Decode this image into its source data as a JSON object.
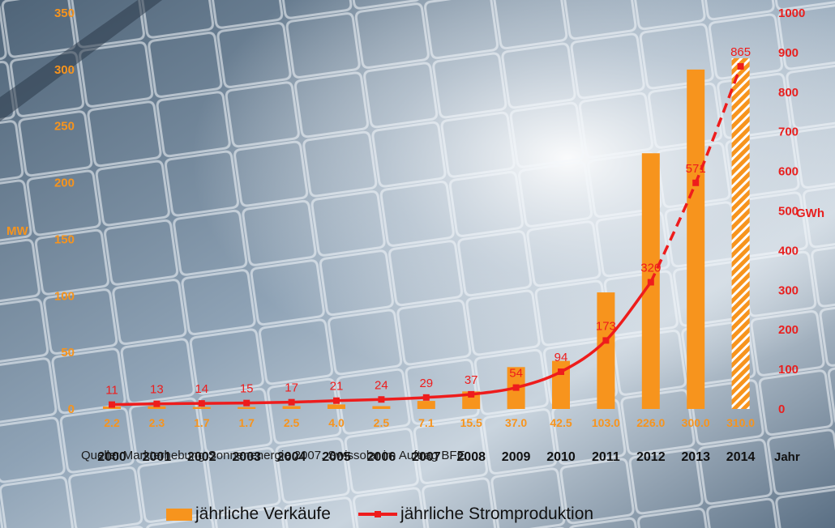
{
  "colors": {
    "bar": "#f7941d",
    "bar_estimate_stripe": "#ffffff",
    "line": "#ee1c1c",
    "axis_label": "#f7941d",
    "right_axis_label": "#e8201f",
    "value_label": "#f7941d",
    "line_label": "#ee1c1c",
    "year_label": "#111111"
  },
  "source_text": "Quelle: Markterhebung Sonnenenergie 2007, Swissolar im Auftrag BFE",
  "legend": {
    "bar_label": "jährliche Verkäufe",
    "line_label": "jährliche Stromproduktion"
  },
  "chart_data": {
    "type": "bar+line",
    "categories": [
      "2000",
      "2001",
      "2002",
      "2003",
      "2004",
      "2005",
      "2006",
      "2007",
      "2008",
      "2009",
      "2010",
      "2011",
      "2012",
      "2013",
      "2014"
    ],
    "xlabel": "Jahr",
    "left_axis": {
      "label": "MW",
      "range": [
        0,
        350
      ],
      "ticks": [
        0,
        50,
        100,
        150,
        200,
        250,
        300,
        350
      ]
    },
    "right_axis": {
      "label": "GWh",
      "range": [
        0,
        1000
      ],
      "ticks": [
        0,
        100,
        200,
        300,
        400,
        500,
        600,
        700,
        800,
        900,
        1000
      ]
    },
    "grid": false,
    "legend_position": "bottom",
    "series": [
      {
        "name": "jährliche Verkäufe",
        "type": "bar",
        "axis": "left",
        "values": [
          2.2,
          2.3,
          1.7,
          1.7,
          2.5,
          4.0,
          2.5,
          7.1,
          15.5,
          37.0,
          42.5,
          103.0,
          226.0,
          300.0,
          310.0
        ],
        "labels": [
          "2.2",
          "2.3",
          "1.7",
          "1.7",
          "2.5",
          "4.0",
          "2.5",
          "7.1",
          "15.5",
          "37.0",
          "42.5",
          "103.0",
          "226.0",
          "300.0",
          "310.0"
        ],
        "estimate_from_index": 14
      },
      {
        "name": "jährliche Stromproduktion",
        "type": "line",
        "axis": "right",
        "values": [
          11,
          13,
          14,
          15,
          17,
          21,
          24,
          29,
          37,
          54,
          94,
          173,
          320,
          571,
          865
        ],
        "labels": [
          "11",
          "13",
          "14",
          "15",
          "17",
          "21",
          "24",
          "29",
          "37",
          "54",
          "94",
          "173",
          "320",
          "571",
          "865"
        ],
        "dashed_from_index": 12
      }
    ]
  }
}
